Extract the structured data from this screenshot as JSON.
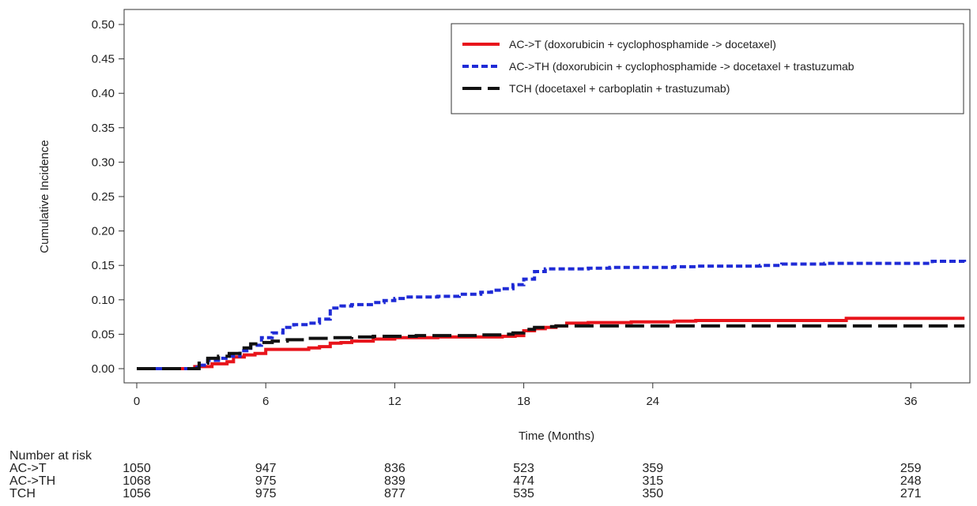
{
  "chart_data": {
    "type": "line",
    "title": "",
    "xlabel": "Time (Months)",
    "ylabel": "Cumulative Incidence",
    "xlim": [
      0,
      38.5
    ],
    "ylim": [
      0,
      0.5
    ],
    "x_ticks": [
      0,
      6,
      12,
      18,
      24,
      36
    ],
    "x_tick_labels": [
      "0",
      "6",
      "12",
      "18",
      "24",
      "36"
    ],
    "y_ticks": [
      0,
      0.05,
      0.1,
      0.15,
      0.2,
      0.25,
      0.3,
      0.35,
      0.4,
      0.45,
      0.5
    ],
    "y_tick_labels": [
      "0.00",
      "0.05",
      "0.10",
      "0.15",
      "0.20",
      "0.25",
      "0.30",
      "0.35",
      "0.40",
      "0.45",
      "0.50"
    ],
    "grid": false,
    "legend_position": "top-right",
    "series": [
      {
        "name": "AC->T (doxorubicin + cyclophosphamide -> docetaxel)",
        "color": "#e8141b",
        "dash": "solid",
        "x": [
          0,
          2.5,
          2.7,
          3.5,
          4.2,
          4.5,
          5.0,
          5.5,
          6.0,
          6.5,
          7.0,
          7.5,
          8.0,
          8.5,
          9.0,
          9.5,
          10.0,
          11.0,
          12.0,
          13.0,
          14.0,
          15.0,
          16.0,
          17.0,
          17.6,
          18.0,
          18.5,
          19.0,
          19.5,
          20.0,
          21.0,
          22.0,
          23.0,
          24.0,
          25.0,
          26.0,
          28.0,
          30.0,
          32.0,
          33.0,
          34.0,
          36.0,
          38.5
        ],
        "y": [
          0,
          0,
          0.003,
          0.007,
          0.01,
          0.017,
          0.02,
          0.022,
          0.028,
          0.028,
          0.028,
          0.028,
          0.03,
          0.032,
          0.037,
          0.038,
          0.04,
          0.043,
          0.045,
          0.045,
          0.046,
          0.046,
          0.046,
          0.047,
          0.048,
          0.055,
          0.058,
          0.06,
          0.062,
          0.066,
          0.067,
          0.067,
          0.068,
          0.068,
          0.069,
          0.07,
          0.07,
          0.07,
          0.07,
          0.073,
          0.073,
          0.073,
          0.073
        ]
      },
      {
        "name": "AC->TH (doxorubicin + cyclophosphamide -> docetaxel + trastuzumab",
        "color": "#1f2bd6",
        "dash": "dotted",
        "x": [
          0,
          2.5,
          2.8,
          3.3,
          3.8,
          4.3,
          4.8,
          5.3,
          5.8,
          6.3,
          6.8,
          7.3,
          8.0,
          8.5,
          9.0,
          9.5,
          10.0,
          11.0,
          11.5,
          12.0,
          12.5,
          13.0,
          14.0,
          15.0,
          16.0,
          16.5,
          17.0,
          17.5,
          18.0,
          18.5,
          19.0,
          20.0,
          21.0,
          22.0,
          23.0,
          24.0,
          25.0,
          26.0,
          28.0,
          29.0,
          30.0,
          32.0,
          34.0,
          36.0,
          37.0,
          38.5
        ],
        "y": [
          0,
          0,
          0.005,
          0.012,
          0.015,
          0.018,
          0.026,
          0.034,
          0.045,
          0.052,
          0.06,
          0.064,
          0.066,
          0.072,
          0.088,
          0.091,
          0.093,
          0.096,
          0.099,
          0.102,
          0.104,
          0.104,
          0.105,
          0.108,
          0.111,
          0.114,
          0.116,
          0.122,
          0.13,
          0.141,
          0.145,
          0.145,
          0.146,
          0.147,
          0.147,
          0.147,
          0.148,
          0.149,
          0.149,
          0.15,
          0.152,
          0.153,
          0.153,
          0.153,
          0.156,
          0.155
        ]
      },
      {
        "name": "TCH (docetaxel + carboplatin + trastuzumab)",
        "color": "#111111",
        "dash": "longdash",
        "x": [
          0,
          2.5,
          2.9,
          3.3,
          3.8,
          4.3,
          4.8,
          5.3,
          5.8,
          6.3,
          7.0,
          8.0,
          9.0,
          10.0,
          11.0,
          12.0,
          13.0,
          14.0,
          15.0,
          16.0,
          17.0,
          17.5,
          18.0,
          18.5,
          19.0,
          19.5,
          20.0,
          21.0,
          22.0,
          24.0,
          26.0,
          28.0,
          30.0,
          32.0,
          34.0,
          36.0,
          38.5
        ],
        "y": [
          0,
          0,
          0.008,
          0.015,
          0.018,
          0.022,
          0.03,
          0.036,
          0.038,
          0.04,
          0.042,
          0.044,
          0.045,
          0.046,
          0.047,
          0.047,
          0.048,
          0.048,
          0.048,
          0.049,
          0.05,
          0.052,
          0.057,
          0.06,
          0.061,
          0.062,
          0.062,
          0.062,
          0.062,
          0.062,
          0.062,
          0.062,
          0.062,
          0.062,
          0.062,
          0.062,
          0.062
        ]
      }
    ]
  },
  "risk_table": {
    "title": "Number at risk",
    "times": [
      0,
      6,
      12,
      18,
      24,
      36
    ],
    "rows": [
      {
        "label": "AC->T",
        "counts": [
          "1050",
          "947",
          "836",
          "523",
          "359",
          "259"
        ]
      },
      {
        "label": "AC->TH",
        "counts": [
          "1068",
          "975",
          "839",
          "474",
          "315",
          "248"
        ]
      },
      {
        "label": "TCH",
        "counts": [
          "1056",
          "975",
          "877",
          "535",
          "350",
          "271"
        ]
      }
    ]
  }
}
